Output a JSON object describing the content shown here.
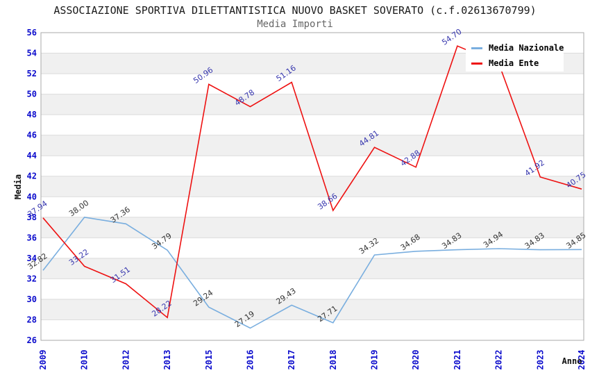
{
  "title": "ASSOCIAZIONE SPORTIVA DILETTANTISTICA NUOVO BASKET SOVERATO (c.f.02613670799)",
  "subtitle": "Media Importi",
  "legend": {
    "position": "top-right-inside",
    "items": [
      {
        "label": "Media Nazionale",
        "color": "#79AEDF"
      },
      {
        "label": "Media Ente",
        "color": "#EE1111"
      }
    ]
  },
  "axes": {
    "y_title": "Media",
    "x_title": "Anno",
    "y_ticks": [
      26,
      28,
      30,
      32,
      34,
      36,
      38,
      40,
      42,
      44,
      46,
      48,
      50,
      52,
      54,
      56
    ],
    "tick_label_color": "#0B0BCC"
  },
  "chart_data": {
    "type": "line",
    "title": "Media Importi",
    "xlabel": "Anno",
    "ylabel": "Media",
    "ylim": [
      26,
      56
    ],
    "y_tick_step": 2,
    "grid": "horizontal alternating bands",
    "legend_position": "top-right-inside",
    "categories": [
      "2009",
      "2010",
      "2012",
      "2013",
      "2015",
      "2016",
      "2017",
      "2018",
      "2019",
      "2020",
      "2021",
      "2022",
      "2023",
      "2024"
    ],
    "series": [
      {
        "name": "Media Nazionale",
        "color": "#79AEDF",
        "label_color": "#333333",
        "values": [
          32.82,
          38.0,
          37.36,
          34.79,
          29.24,
          27.19,
          29.43,
          27.71,
          34.32,
          34.68,
          34.83,
          34.94,
          34.83,
          34.85
        ],
        "labels": [
          "32.82",
          "38.00",
          "37.36",
          "34.79",
          "29.24",
          "27.19",
          "29.43",
          "27.71",
          "34.32",
          "34.68",
          "34.83",
          "34.94",
          "34.83",
          "34.85"
        ]
      },
      {
        "name": "Media Ente",
        "color": "#EE1111",
        "label_color": "#3636AE",
        "values": [
          37.94,
          33.22,
          31.51,
          28.22,
          50.96,
          48.78,
          51.16,
          38.66,
          44.81,
          42.88,
          54.7,
          53.0,
          41.92,
          40.75
        ],
        "labels": [
          "37.94",
          "33.22",
          "31.51",
          "28.22",
          "50.96",
          "48.78",
          "51.16",
          "38.66",
          "44.81",
          "42.88",
          "54.70",
          "",
          "41.92",
          "40.75"
        ]
      }
    ]
  },
  "colors": {
    "band_gray": "#F0F0F0",
    "band_white": "#FFFFFF",
    "grid_line": "#DCDCDC",
    "plot_border": "#AAAAAA",
    "title_text": "#1A1A1A",
    "subtitle_text": "#666666"
  }
}
